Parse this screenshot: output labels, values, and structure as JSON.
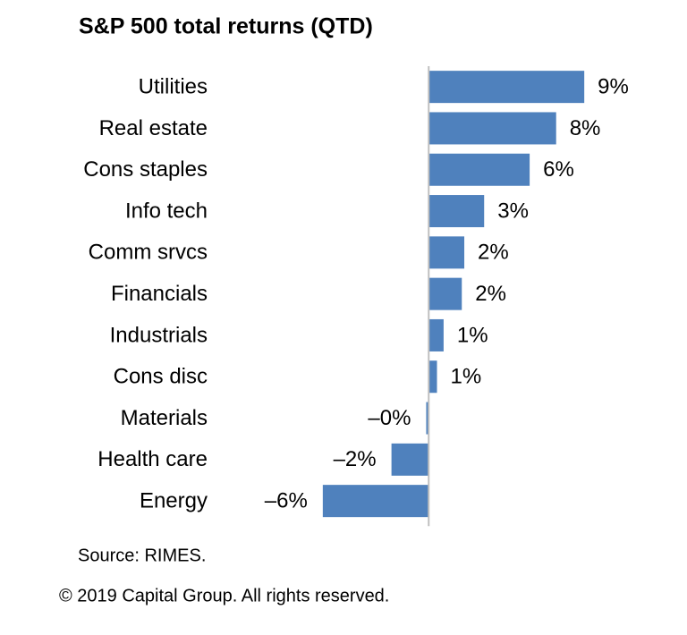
{
  "chart_data": {
    "type": "bar",
    "orientation": "horizontal",
    "title": "S&P 500 total returns (QTD)",
    "categories": [
      "Utilities",
      "Real estate",
      "Cons staples",
      "Info tech",
      "Comm srvcs",
      "Financials",
      "Industrials",
      "Cons disc",
      "Materials",
      "Health care",
      "Energy"
    ],
    "values": [
      9.4,
      7.7,
      6.1,
      3.35,
      2.15,
      2.0,
      0.9,
      0.5,
      -0.15,
      -2.25,
      -6.4
    ],
    "value_labels": [
      "9%",
      "8%",
      "6%",
      "3%",
      "2%",
      "2%",
      "1%",
      "1%",
      "–0%",
      "–2%",
      "–6%"
    ],
    "color": "#4f81bd",
    "xlim": [
      -6.5,
      9.5
    ],
    "source": "Source: RIMES.",
    "copyright": "© 2019 Capital Group. All rights reserved."
  }
}
